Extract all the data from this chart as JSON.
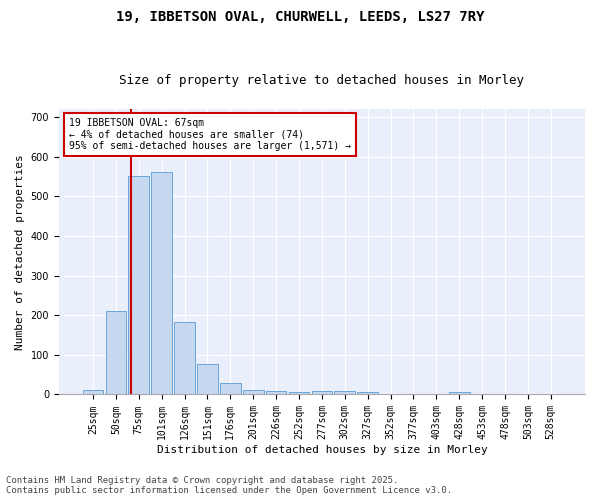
{
  "title_line1": "19, IBBETSON OVAL, CHURWELL, LEEDS, LS27 7RY",
  "title_line2": "Size of property relative to detached houses in Morley",
  "xlabel": "Distribution of detached houses by size in Morley",
  "ylabel": "Number of detached properties",
  "bar_color": "#c5d8f0",
  "bar_edge_color": "#5b9bd5",
  "background_color": "#eaf0fb",
  "grid_color": "#ffffff",
  "annotation_box_color": "#cc0000",
  "annotation_text": "19 IBBETSON OVAL: 67sqm\n← 4% of detached houses are smaller (74)\n95% of semi-detached houses are larger (1,571) →",
  "vline_color": "#cc0000",
  "vline_x": 1.68,
  "categories": [
    "25sqm",
    "50sqm",
    "75sqm",
    "101sqm",
    "126sqm",
    "151sqm",
    "176sqm",
    "201sqm",
    "226sqm",
    "252sqm",
    "277sqm",
    "302sqm",
    "327sqm",
    "352sqm",
    "377sqm",
    "403sqm",
    "428sqm",
    "453sqm",
    "478sqm",
    "503sqm",
    "528sqm"
  ],
  "values": [
    12,
    210,
    551,
    560,
    182,
    78,
    28,
    11,
    9,
    7,
    9,
    8,
    6,
    0,
    0,
    0,
    5,
    0,
    0,
    0,
    0
  ],
  "ylim": [
    0,
    720
  ],
  "yticks": [
    0,
    100,
    200,
    300,
    400,
    500,
    600,
    700
  ],
  "footnote": "Contains HM Land Registry data © Crown copyright and database right 2025.\nContains public sector information licensed under the Open Government Licence v3.0.",
  "title_fontsize": 10,
  "subtitle_fontsize": 9,
  "axis_fontsize": 8,
  "tick_fontsize": 7,
  "annot_fontsize": 7,
  "footnote_fontsize": 6.5
}
